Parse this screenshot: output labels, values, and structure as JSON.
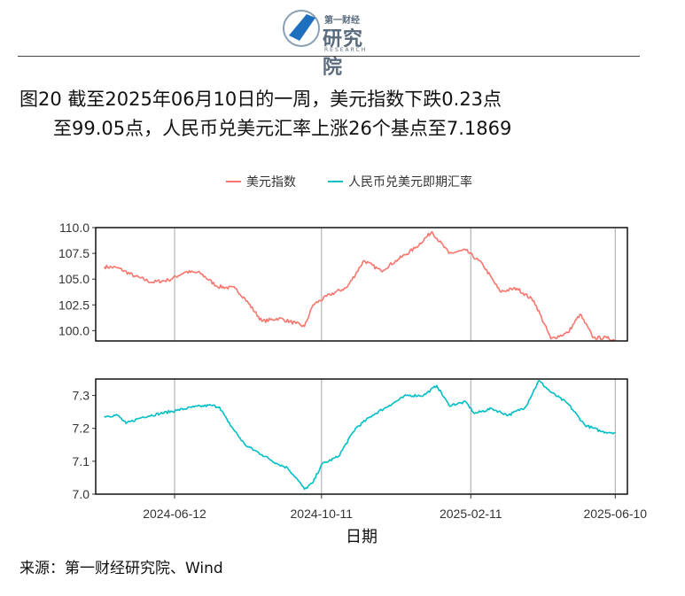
{
  "header": {
    "logo": {
      "top_text": "第一财经",
      "main_text": "研究院",
      "sub_text": "RESEARCH"
    }
  },
  "title": {
    "line1": "图20  截至2025年06月10日的一周，美元指数下跌0.23点",
    "line2": "至99.05点，人民币兑美元汇率上涨26个基点至7.1869"
  },
  "source": "来源：第一财经研究院、Wind",
  "colors": {
    "usd": "#F8766D",
    "cny": "#00BFC4"
  },
  "chart_data": {
    "type": "line",
    "xlabel": "日期",
    "legend": [
      "美元指数",
      "人民币兑美元即期汇率"
    ],
    "legend_position": "top",
    "x_ticks": [
      "2024-06-12",
      "2024-10-11",
      "2025-02-11",
      "2025-06-10"
    ],
    "x_range": [
      "2024-04-08",
      "2025-06-20"
    ],
    "panels": [
      {
        "name": "美元指数",
        "ylim": [
          99.0,
          110.0
        ],
        "y_ticks": [
          "100.0",
          "102.5",
          "105.0",
          "107.5",
          "110.0"
        ],
        "points": [
          [
            "2024-04-15",
            106.2
          ],
          [
            "2024-04-26",
            106.1
          ],
          [
            "2024-05-10",
            105.3
          ],
          [
            "2024-05-24",
            104.7
          ],
          [
            "2024-06-07",
            104.9
          ],
          [
            "2024-06-21",
            105.7
          ],
          [
            "2024-07-03",
            105.6
          ],
          [
            "2024-07-17",
            104.3
          ],
          [
            "2024-08-01",
            104.1
          ],
          [
            "2024-08-09",
            103.1
          ],
          [
            "2024-08-23",
            100.9
          ],
          [
            "2024-09-06",
            101.2
          ],
          [
            "2024-09-20",
            100.7
          ],
          [
            "2024-09-27",
            100.4
          ],
          [
            "2024-10-04",
            102.5
          ],
          [
            "2024-10-18",
            103.5
          ],
          [
            "2024-11-01",
            104.2
          ],
          [
            "2024-11-15",
            106.8
          ],
          [
            "2024-11-29",
            105.8
          ],
          [
            "2024-12-13",
            106.9
          ],
          [
            "2024-12-27",
            108.0
          ],
          [
            "2025-01-10",
            109.6
          ],
          [
            "2025-01-24",
            107.5
          ],
          [
            "2025-02-07",
            107.8
          ],
          [
            "2025-02-21",
            106.4
          ],
          [
            "2025-03-07",
            103.8
          ],
          [
            "2025-03-21",
            104.1
          ],
          [
            "2025-04-04",
            102.9
          ],
          [
            "2025-04-18",
            99.2
          ],
          [
            "2025-05-02",
            99.8
          ],
          [
            "2025-05-12",
            101.6
          ],
          [
            "2025-05-23",
            99.3
          ],
          [
            "2025-06-03",
            99.3
          ],
          [
            "2025-06-10",
            99.05
          ]
        ]
      },
      {
        "name": "人民币兑美元即期汇率",
        "ylim": [
          7.0,
          7.35
        ],
        "y_ticks": [
          "7.0",
          "7.1",
          "7.2",
          "7.3"
        ],
        "points": [
          [
            "2024-04-15",
            7.237
          ],
          [
            "2024-04-26",
            7.24
          ],
          [
            "2024-05-03",
            7.215
          ],
          [
            "2024-05-17",
            7.235
          ],
          [
            "2024-05-31",
            7.245
          ],
          [
            "2024-06-14",
            7.255
          ],
          [
            "2024-06-28",
            7.265
          ],
          [
            "2024-07-12",
            7.27
          ],
          [
            "2024-07-19",
            7.265
          ],
          [
            "2024-07-26",
            7.22
          ],
          [
            "2024-08-09",
            7.15
          ],
          [
            "2024-08-23",
            7.12
          ],
          [
            "2024-09-06",
            7.09
          ],
          [
            "2024-09-13",
            7.08
          ],
          [
            "2024-09-20",
            7.05
          ],
          [
            "2024-09-27",
            7.015
          ],
          [
            "2024-10-04",
            7.035
          ],
          [
            "2024-10-11",
            7.09
          ],
          [
            "2024-10-25",
            7.115
          ],
          [
            "2024-11-08",
            7.2
          ],
          [
            "2024-11-22",
            7.24
          ],
          [
            "2024-12-06",
            7.27
          ],
          [
            "2024-12-20",
            7.3
          ],
          [
            "2025-01-03",
            7.3
          ],
          [
            "2025-01-14",
            7.33
          ],
          [
            "2025-01-24",
            7.27
          ],
          [
            "2025-02-07",
            7.28
          ],
          [
            "2025-02-14",
            7.245
          ],
          [
            "2025-02-28",
            7.26
          ],
          [
            "2025-03-14",
            7.24
          ],
          [
            "2025-03-28",
            7.265
          ],
          [
            "2025-04-08",
            7.345
          ],
          [
            "2025-04-18",
            7.31
          ],
          [
            "2025-05-02",
            7.275
          ],
          [
            "2025-05-16",
            7.21
          ],
          [
            "2025-05-30",
            7.19
          ],
          [
            "2025-06-10",
            7.1869
          ]
        ]
      }
    ]
  }
}
